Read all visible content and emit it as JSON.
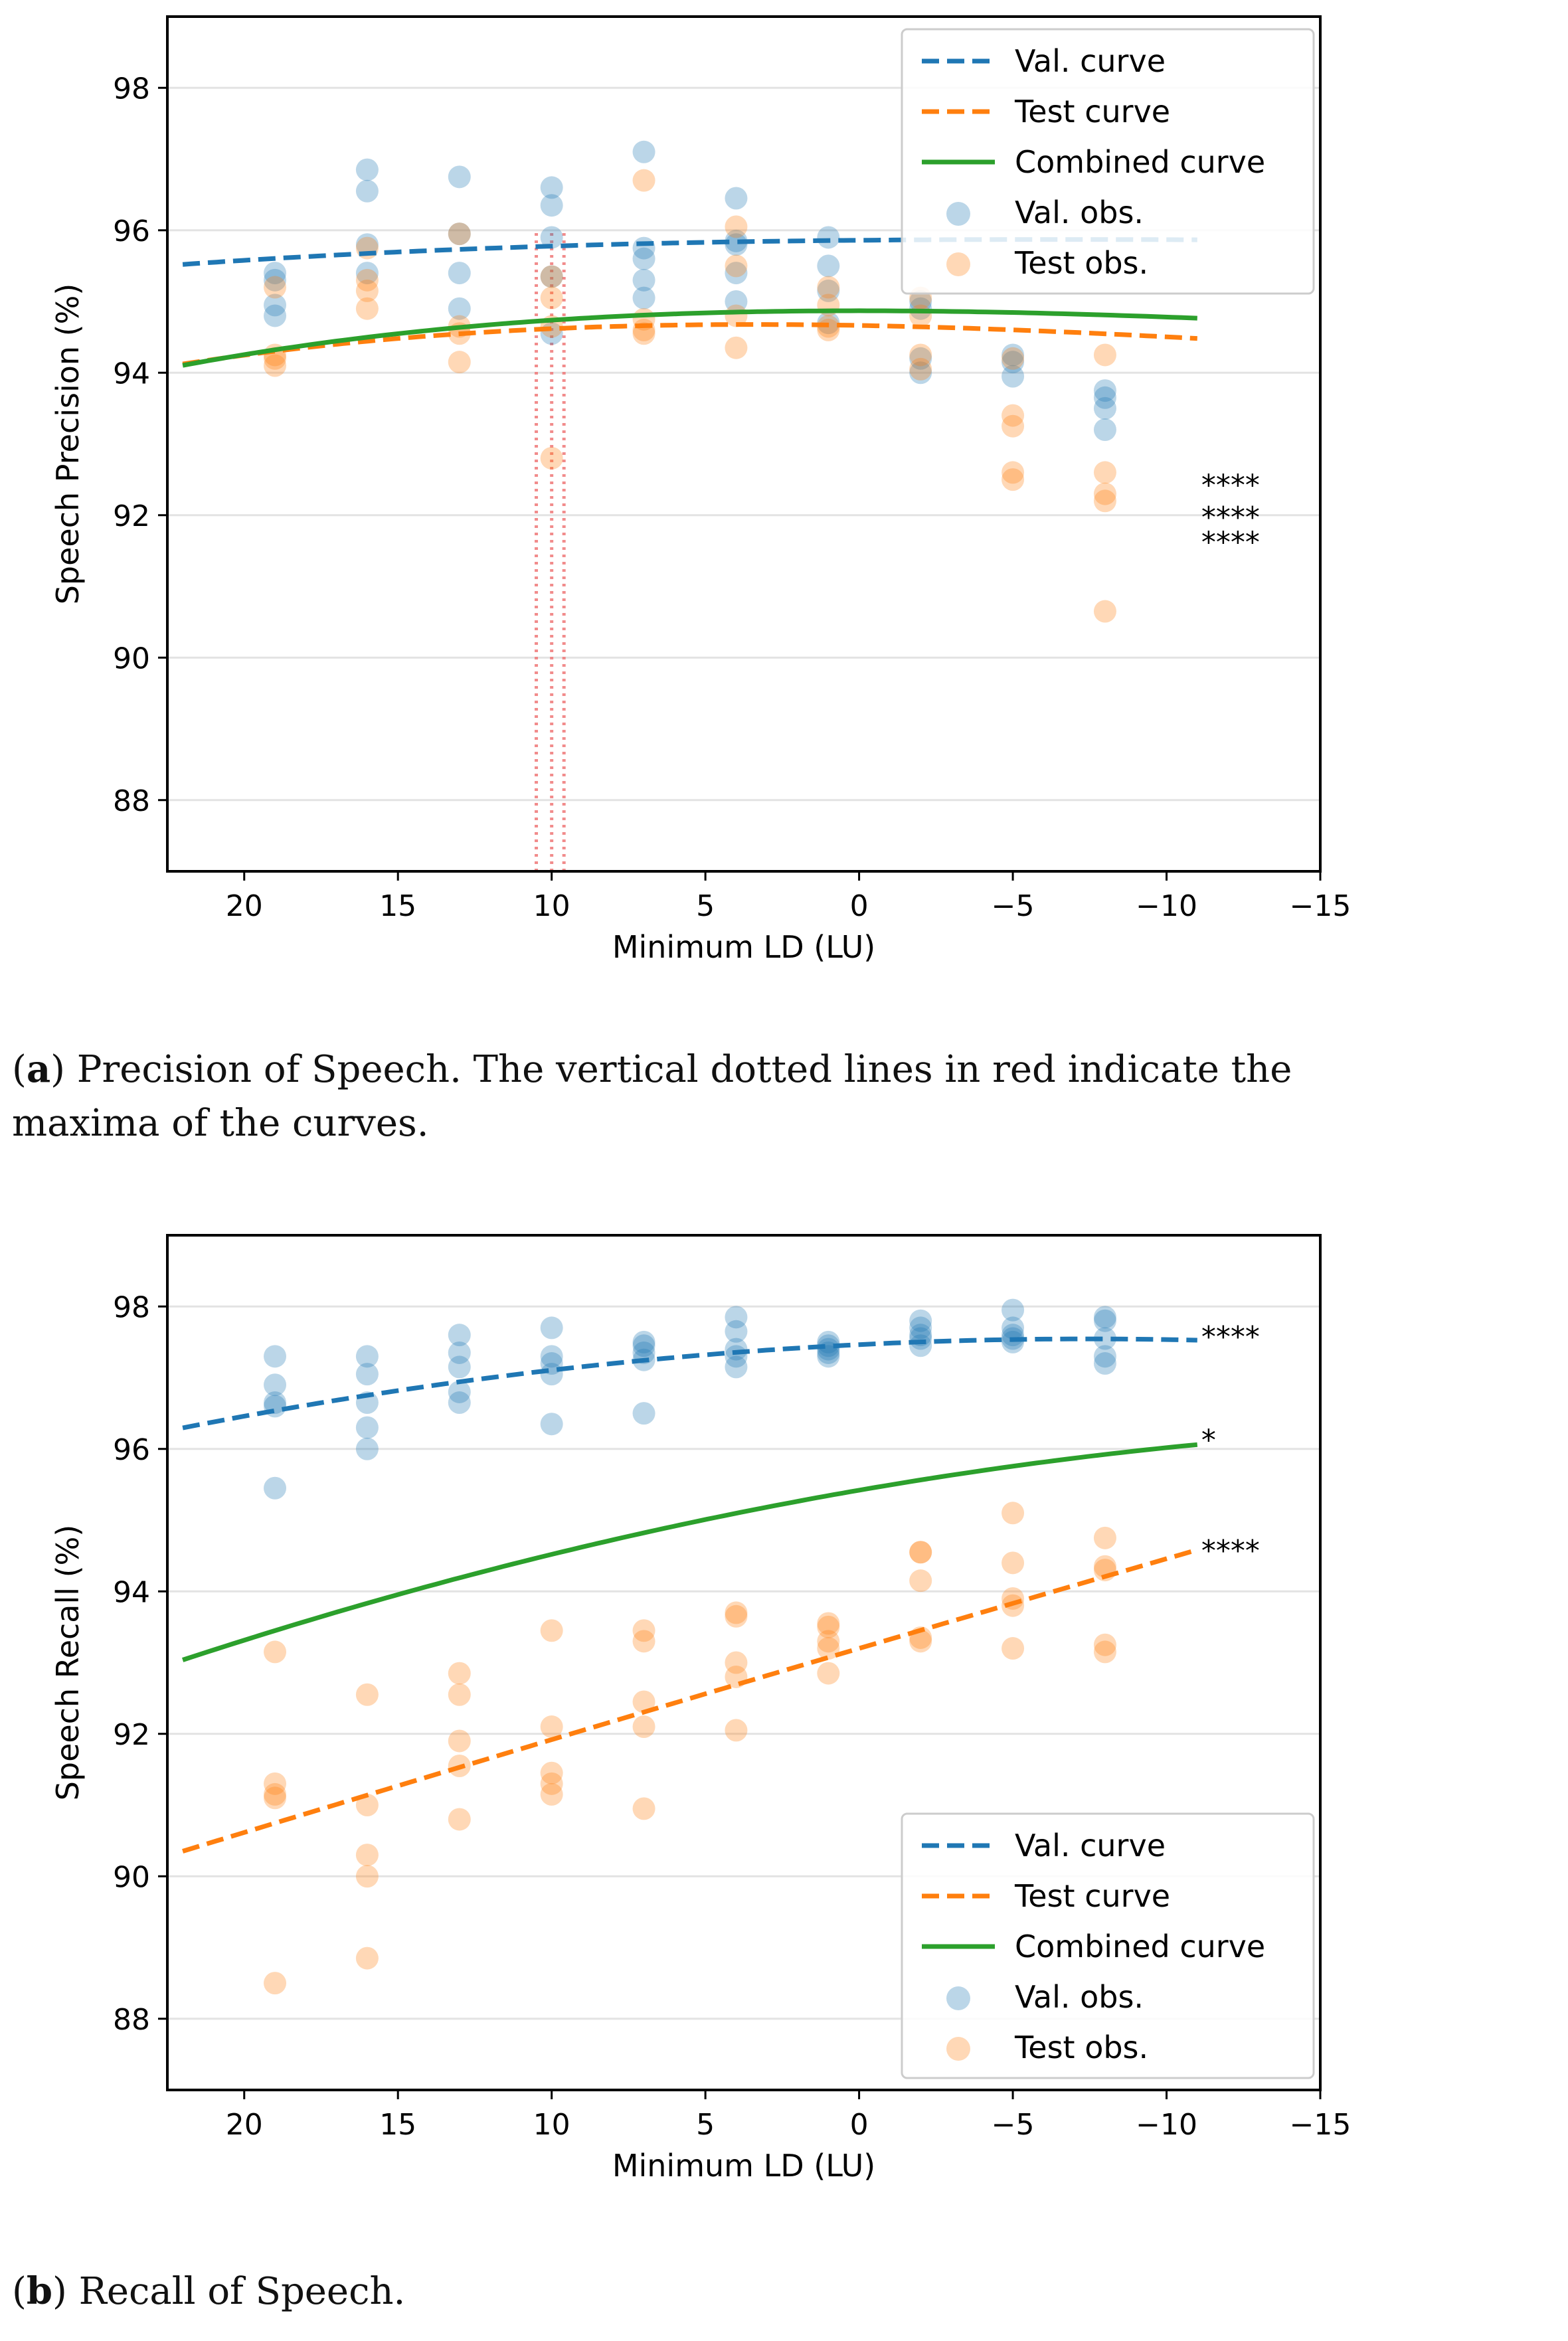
{
  "chart_data": [
    {
      "panel": "a",
      "type": "scatter",
      "xlabel": "Minimum LD (LU)",
      "ylabel": "Speech Precision (%)",
      "xlim": [
        22.5,
        -15
      ],
      "ylim": [
        87,
        99
      ],
      "xticks": [
        20,
        15,
        10,
        5,
        0,
        -5,
        -10,
        -15
      ],
      "xtick_labels": [
        "20",
        "15",
        "10",
        "5",
        "0",
        "−5",
        "−10",
        "−15"
      ],
      "yticks": [
        88,
        90,
        92,
        94,
        96,
        98
      ],
      "ytick_labels": [
        "88",
        "90",
        "92",
        "94",
        "96",
        "98"
      ],
      "grid": "horizontal",
      "legend_position": "top-right",
      "legend": [
        "Val. curve",
        "Test curve",
        "Combined curve",
        "Val. obs.",
        "Test obs."
      ],
      "curves": [
        {
          "name": "Val. curve",
          "style": "dashed",
          "color": "#1f77b4",
          "x_range": [
            22,
            -11
          ],
          "coeffs": [
            95.8599,
            -0.003826,
            -0.000371,
            -7.1e-06
          ]
        },
        {
          "name": "Test curve",
          "style": "dashed",
          "color": "#ff7f0e",
          "x_range": [
            22,
            -11
          ],
          "coeffs": [
            94.6637,
            0.007735,
            -0.001026,
            -2.02e-05
          ]
        },
        {
          "name": "Combined curve",
          "style": "solid",
          "color": "#2ca02c",
          "x_range": [
            22,
            -11
          ],
          "coeffs": [
            94.87,
            0,
            -0.0011,
            -2.2e-05
          ]
        }
      ],
      "maxima_lines": [
        10.5,
        10.0,
        9.6
      ],
      "significance": [
        {
          "label": "****",
          "y": 92.45
        },
        {
          "label": "****",
          "y": 92.0
        },
        {
          "label": "****",
          "y": 91.65
        }
      ],
      "val_obs": [
        {
          "x": 19,
          "y": [
            95.4,
            95.3,
            94.95,
            94.8
          ]
        },
        {
          "x": 16,
          "y": [
            96.85,
            96.55,
            95.8,
            95.4
          ]
        },
        {
          "x": 13,
          "y": [
            96.75,
            95.95,
            95.4,
            94.9
          ]
        },
        {
          "x": 10,
          "y": [
            96.6,
            96.35,
            95.9,
            95.35,
            94.55
          ]
        },
        {
          "x": 7,
          "y": [
            97.1,
            95.75,
            95.6,
            95.3,
            95.05
          ]
        },
        {
          "x": 4,
          "y": [
            96.45,
            95.85,
            95.8,
            95.4,
            95.0
          ]
        },
        {
          "x": 1,
          "y": [
            95.9,
            95.5,
            95.15,
            94.7
          ]
        },
        {
          "x": -2,
          "y": [
            95.0,
            94.9,
            94.2,
            94.0
          ]
        },
        {
          "x": -5,
          "y": [
            94.25,
            94.15,
            93.95
          ]
        },
        {
          "x": -8,
          "y": [
            93.75,
            93.65,
            93.5,
            93.2
          ]
        }
      ],
      "test_obs": [
        {
          "x": 19,
          "y": [
            95.2,
            94.25,
            94.2,
            94.1
          ]
        },
        {
          "x": 16,
          "y": [
            95.75,
            95.3,
            95.15,
            94.9
          ]
        },
        {
          "x": 13,
          "y": [
            95.95,
            94.65,
            94.55,
            94.15
          ]
        },
        {
          "x": 10,
          "y": [
            95.35,
            95.05,
            94.65,
            92.8
          ]
        },
        {
          "x": 7,
          "y": [
            96.7,
            94.75,
            94.6,
            94.55
          ]
        },
        {
          "x": 4,
          "y": [
            96.05,
            95.5,
            94.8,
            94.35
          ]
        },
        {
          "x": 1,
          "y": [
            95.2,
            94.95,
            94.65,
            94.6
          ]
        },
        {
          "x": -2,
          "y": [
            95.05,
            94.8,
            94.25,
            94.05
          ]
        },
        {
          "x": -5,
          "y": [
            94.2,
            93.4,
            93.25,
            92.6,
            92.5
          ]
        },
        {
          "x": -8,
          "y": [
            94.25,
            92.6,
            92.3,
            92.2,
            90.65
          ]
        }
      ]
    },
    {
      "panel": "b",
      "type": "scatter",
      "xlabel": "Minimum LD (LU)",
      "ylabel": "Speech Recall (%)",
      "xlim": [
        22.5,
        -15
      ],
      "ylim": [
        87,
        99
      ],
      "xticks": [
        20,
        15,
        10,
        5,
        0,
        -5,
        -10,
        -15
      ],
      "xtick_labels": [
        "20",
        "15",
        "10",
        "5",
        "0",
        "−5",
        "−10",
        "−15"
      ],
      "yticks": [
        88,
        90,
        92,
        94,
        96,
        98
      ],
      "ytick_labels": [
        "88",
        "90",
        "92",
        "94",
        "96",
        "98"
      ],
      "grid": "horizontal",
      "legend_position": "lower-right",
      "legend": [
        "Val. curve",
        "Test curve",
        "Combined curve",
        "Val. obs.",
        "Test obs."
      ],
      "curves": [
        {
          "name": "Val. curve",
          "style": "dashed",
          "color": "#1f77b4",
          "x_range": [
            22,
            -11
          ],
          "coeffs": [
            97.4646,
            -0.021467,
            -0.00144
          ]
        },
        {
          "name": "Test curve",
          "style": "dashed",
          "color": "#ff7f0e",
          "x_range": [
            22,
            -11
          ],
          "coeffs": [
            93.1994,
            -0.127,
            -0.00011
          ]
        },
        {
          "name": "Combined curve",
          "style": "solid",
          "color": "#2ca02c",
          "x_range": [
            22,
            -11
          ],
          "coeffs": [
            95.4206,
            -0.0749,
            -0.00152
          ]
        }
      ],
      "significance": [
        {
          "label": "****",
          "y": 97.6
        },
        {
          "label": "*",
          "y": 96.15
        },
        {
          "label": "****",
          "y": 94.6
        }
      ],
      "val_obs": [
        {
          "x": 19,
          "y": [
            97.3,
            96.9,
            96.65,
            96.6,
            95.45
          ]
        },
        {
          "x": 16,
          "y": [
            97.3,
            97.05,
            96.65,
            96.3,
            96.0
          ]
        },
        {
          "x": 13,
          "y": [
            97.6,
            97.35,
            97.15,
            96.8,
            96.65
          ]
        },
        {
          "x": 10,
          "y": [
            97.7,
            97.3,
            97.2,
            97.05,
            96.35
          ]
        },
        {
          "x": 7,
          "y": [
            97.5,
            97.45,
            97.35,
            97.25,
            96.5
          ]
        },
        {
          "x": 4,
          "y": [
            97.85,
            97.65,
            97.4,
            97.3,
            97.15
          ]
        },
        {
          "x": 1,
          "y": [
            97.5,
            97.45,
            97.4,
            97.35,
            97.3
          ]
        },
        {
          "x": -2,
          "y": [
            97.8,
            97.7,
            97.6,
            97.55,
            97.45
          ]
        },
        {
          "x": -5,
          "y": [
            97.95,
            97.7,
            97.6,
            97.55,
            97.5
          ]
        },
        {
          "x": -8,
          "y": [
            97.85,
            97.8,
            97.55,
            97.3,
            97.2
          ]
        }
      ],
      "test_obs": [
        {
          "x": 19,
          "y": [
            93.15,
            91.3,
            91.15,
            91.1,
            88.5
          ]
        },
        {
          "x": 16,
          "y": [
            92.55,
            91.0,
            90.3,
            90.0,
            88.85
          ]
        },
        {
          "x": 13,
          "y": [
            92.85,
            92.55,
            91.9,
            91.55,
            90.8
          ]
        },
        {
          "x": 10,
          "y": [
            93.45,
            92.1,
            91.45,
            91.3,
            91.15
          ]
        },
        {
          "x": 7,
          "y": [
            93.45,
            93.3,
            92.45,
            92.1,
            90.95
          ]
        },
        {
          "x": 4,
          "y": [
            93.7,
            93.65,
            93.0,
            92.8,
            92.05
          ]
        },
        {
          "x": 1,
          "y": [
            93.55,
            93.5,
            93.3,
            93.2,
            92.85
          ]
        },
        {
          "x": -2,
          "y": [
            94.55,
            94.55,
            94.15,
            93.35,
            93.3
          ]
        },
        {
          "x": -5,
          "y": [
            95.1,
            94.4,
            93.9,
            93.8,
            93.2
          ]
        },
        {
          "x": -8,
          "y": [
            94.75,
            94.35,
            94.3,
            93.25,
            93.15
          ]
        }
      ]
    }
  ],
  "captions": {
    "a_label": "a",
    "a_text": ") Precision of Speech.  The vertical dotted lines in red indicate the",
    "a_text2": "maxima of the curves.",
    "b_label": "b",
    "b_text": ") Recall of Speech."
  },
  "colors": {
    "val": "#1f77b4",
    "test": "#ff7f0e",
    "combined": "#2ca02c",
    "maxima": "#f08080"
  }
}
